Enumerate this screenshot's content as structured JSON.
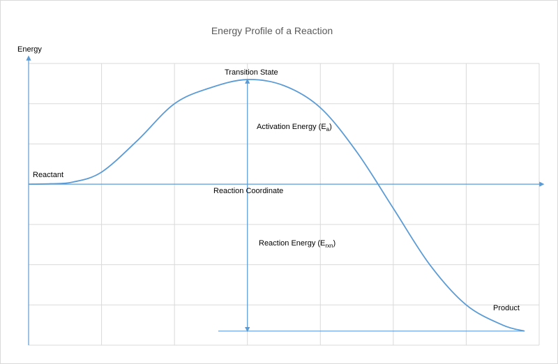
{
  "chart_data": {
    "type": "line",
    "title": "Energy Profile of a Reaction",
    "ylabel": "Energy",
    "xlabel": "Reaction Coordinate",
    "grid": true,
    "xlim": [
      0,
      7
    ],
    "ylim": [
      -4,
      3
    ],
    "colors": {
      "series": "#5b9bd5",
      "grid": "#d9d9d9",
      "title": "#595959",
      "text": "#000000"
    },
    "series": [
      {
        "points": [
          [
            0.0,
            0.0
          ],
          [
            0.3,
            0.01
          ],
          [
            0.6,
            0.05
          ],
          [
            1.0,
            0.3
          ],
          [
            1.5,
            1.1
          ],
          [
            2.0,
            2.0
          ],
          [
            2.5,
            2.4
          ],
          [
            3.0,
            2.6
          ],
          [
            3.5,
            2.45
          ],
          [
            4.0,
            1.9
          ],
          [
            4.5,
            0.8
          ],
          [
            5.0,
            -0.6
          ],
          [
            5.5,
            -2.0
          ],
          [
            6.0,
            -3.0
          ],
          [
            6.5,
            -3.5
          ],
          [
            6.8,
            -3.65
          ]
        ]
      }
    ],
    "annotations": {
      "reactant": {
        "text": "Reactant",
        "x": 0.05,
        "y": 0.15
      },
      "transition_state": {
        "text": "Transition State",
        "x": 2.75,
        "y": 2.72
      },
      "product": {
        "text": "Product",
        "x": 6.4,
        "y": -3.25
      },
      "activation_energy": {
        "text": "Activation Energy (E",
        "subscript": "a",
        "close": ")",
        "x": 3.1,
        "y": 1.4
      },
      "reaction_energy": {
        "text": "Reaction Energy (E",
        "subscript": "rxn",
        "close": ")",
        "x": 3.2,
        "y": -1.55
      }
    },
    "measurements": {
      "activation_arrow": {
        "x": 3.0,
        "from": 0,
        "to": 2.6
      },
      "reaction_arrow": {
        "x": 3.0,
        "from": 0,
        "to": -3.65
      },
      "product_level": {
        "from_x": 2.6,
        "to_x": 6.8,
        "y": -3.65
      }
    }
  }
}
